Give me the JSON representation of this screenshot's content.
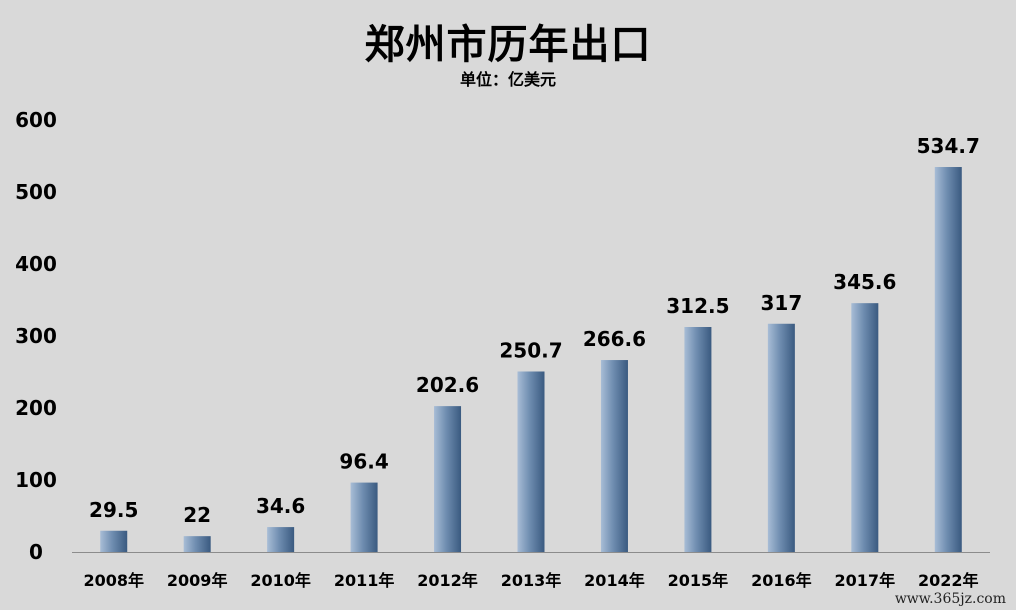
{
  "title": "郑州市历年出口",
  "subtitle": "单位：亿美元",
  "watermark": "www.365jz.com",
  "chart_data": {
    "type": "bar",
    "title": "郑州市历年出口",
    "subtitle": "单位：亿美元",
    "xlabel": "",
    "ylabel": "",
    "categories": [
      "2008年",
      "2009年",
      "2010年",
      "2011年",
      "2012年",
      "2013年",
      "2014年",
      "2015年",
      "2016年",
      "2017年",
      "2022年"
    ],
    "values": [
      29.5,
      22,
      34.6,
      96.4,
      202.6,
      250.7,
      266.6,
      312.5,
      317,
      345.6,
      534.7
    ],
    "value_labels": [
      "29.5",
      "22",
      "34.6",
      "96.4",
      "202.6",
      "250.7",
      "266.6",
      "312.5",
      "317",
      "345.6",
      "534.7"
    ],
    "ylim": [
      0,
      600
    ],
    "yticks": [
      0,
      100,
      200,
      300,
      400,
      500,
      600
    ],
    "grid": false,
    "legend": "none",
    "colors": {
      "bar_dark": "#3a5a80",
      "bar_light": "#a8bdd6",
      "axis": "#8c8c8c",
      "background": "#d9d9d9"
    }
  }
}
